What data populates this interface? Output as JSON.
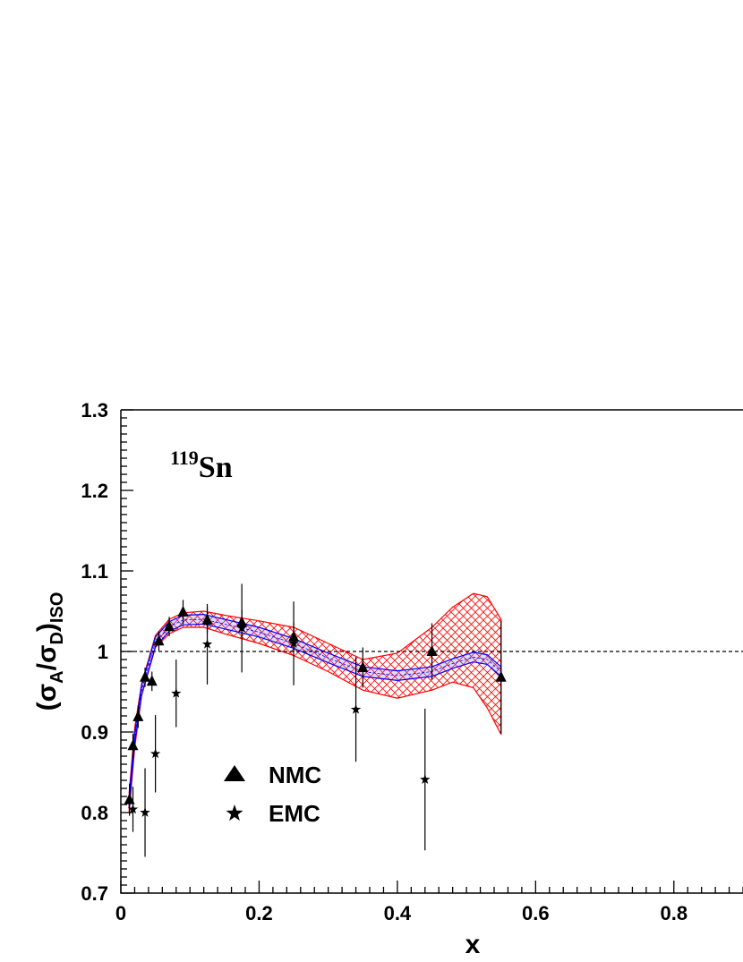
{
  "chart_data": {
    "type": "scatter",
    "xlabel": "x",
    "ylabel": {
      "open": "(",
      "sigma1": "σ",
      "sub1": "A",
      "slash": "/",
      "sigma2": "σ",
      "sub2": "D",
      "close": ")",
      "sub3": "ISO"
    },
    "annotation": {
      "mass_number": "119",
      "element": "Sn"
    },
    "xlim": [
      0,
      0.9
    ],
    "ylim": [
      0.7,
      1.3
    ],
    "x_ticks": [
      {
        "value": 0,
        "label": "0"
      },
      {
        "value": 0.2,
        "label": "0.2"
      },
      {
        "value": 0.4,
        "label": "0.4"
      },
      {
        "value": 0.6,
        "label": "0.6"
      },
      {
        "value": 0.8,
        "label": "0.8"
      }
    ],
    "y_ticks": [
      {
        "value": 0.7,
        "label": "0.7"
      },
      {
        "value": 0.8,
        "label": "0.8"
      },
      {
        "value": 0.9,
        "label": "0.9"
      },
      {
        "value": 1.0,
        "label": "1"
      },
      {
        "value": 1.1,
        "label": "1.1"
      },
      {
        "value": 1.2,
        "label": "1.2"
      },
      {
        "value": 1.3,
        "label": "1.3"
      }
    ],
    "reference_line": 1.0,
    "legend": [
      {
        "label": "NMC",
        "marker": "triangle"
      },
      {
        "label": "EMC",
        "marker": "star"
      }
    ],
    "series": [
      {
        "name": "NMC",
        "marker": "triangle",
        "points": [
          {
            "x": 0.0125,
            "y": 0.816,
            "err": 0.02
          },
          {
            "x": 0.0175,
            "y": 0.883,
            "err": 0.015
          },
          {
            "x": 0.025,
            "y": 0.919,
            "err": 0.014
          },
          {
            "x": 0.035,
            "y": 0.968,
            "err": 0.012
          },
          {
            "x": 0.045,
            "y": 0.963,
            "err": 0.012
          },
          {
            "x": 0.055,
            "y": 1.013,
            "err": 0.012
          },
          {
            "x": 0.07,
            "y": 1.031,
            "err": 0.012
          },
          {
            "x": 0.09,
            "y": 1.049,
            "err": 0.015
          },
          {
            "x": 0.125,
            "y": 1.039,
            "err": 0.016
          },
          {
            "x": 0.175,
            "y": 1.036,
            "err": 0.016
          },
          {
            "x": 0.25,
            "y": 1.018,
            "err": 0.018
          },
          {
            "x": 0.35,
            "y": 0.98,
            "err": 0.025
          },
          {
            "x": 0.45,
            "y": 1.0,
            "err": 0.035
          },
          {
            "x": 0.55,
            "y": 0.968,
            "err": 0.07
          }
        ]
      },
      {
        "name": "EMC",
        "marker": "star",
        "points": [
          {
            "x": 0.0175,
            "y": 0.804,
            "err": 0.028
          },
          {
            "x": 0.035,
            "y": 0.8,
            "err": 0.055
          },
          {
            "x": 0.05,
            "y": 0.873,
            "err": 0.048
          },
          {
            "x": 0.08,
            "y": 0.948,
            "err": 0.042
          },
          {
            "x": 0.125,
            "y": 1.009,
            "err": 0.05
          },
          {
            "x": 0.175,
            "y": 1.029,
            "err": 0.055
          },
          {
            "x": 0.25,
            "y": 1.01,
            "err": 0.052
          },
          {
            "x": 0.34,
            "y": 0.928,
            "err": 0.065
          },
          {
            "x": 0.44,
            "y": 0.841,
            "err": 0.088
          }
        ]
      }
    ],
    "bands": {
      "outer_color": "#ff0000",
      "inner_color": "#0000ff",
      "x": [
        0.012,
        0.02,
        0.03,
        0.05,
        0.07,
        0.09,
        0.12,
        0.15,
        0.2,
        0.25,
        0.3,
        0.35,
        0.4,
        0.45,
        0.48,
        0.51,
        0.53,
        0.55
      ],
      "outer_upper": [
        0.825,
        0.905,
        0.96,
        1.02,
        1.04,
        1.048,
        1.05,
        1.045,
        1.038,
        1.03,
        1.01,
        0.99,
        0.998,
        1.03,
        1.055,
        1.072,
        1.068,
        1.04
      ],
      "outer_lower": [
        0.8,
        0.88,
        0.945,
        1.005,
        1.022,
        1.03,
        1.03,
        1.022,
        1.01,
        0.995,
        0.975,
        0.952,
        0.942,
        0.952,
        0.962,
        0.955,
        0.93,
        0.897
      ],
      "center": [
        0.812,
        0.892,
        0.952,
        1.012,
        1.031,
        1.039,
        1.04,
        1.034,
        1.024,
        1.01,
        0.992,
        0.975,
        0.97,
        0.975,
        0.985,
        0.993,
        0.99,
        0.975
      ],
      "inner_halfwidth": 0.006
    }
  }
}
